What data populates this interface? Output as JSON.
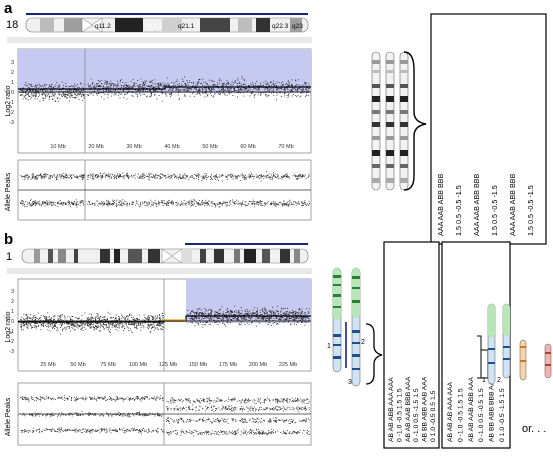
{
  "panel_a": {
    "label": "a",
    "chromosome_number": "18",
    "bands": [
      "q11.2",
      "q12.2",
      "q21.1",
      "q22.3",
      "q23"
    ],
    "plot_ylabel": "Log2 ratio",
    "y_ticks": [
      "3",
      "2",
      "1",
      "0",
      "-1",
      "-2",
      "-3"
    ],
    "x_ticks": [
      "10 Mb",
      "20 Mb",
      "30 Mb",
      "40 Mb",
      "50 Mb",
      "60 Mb",
      "70 Mb"
    ],
    "allele_label": "Allele Peaks",
    "genotype_box_rows": [
      "AAA AAB ABB BBB",
      "1.5  0.5 -0.5 -1.5",
      "AAA AAB ABB BBB",
      "1.5  0.5 -0.5 -1.5",
      "AAA AAB ABB BBB",
      "1.5  0.5 -0.5 -1.5"
    ]
  },
  "panel_b": {
    "label": "b",
    "chromosome_number": "1",
    "plot_ylabel": "Log2 ratio",
    "y_ticks": [
      "3",
      "2",
      "1",
      "0",
      "-1",
      "-2",
      "-3"
    ],
    "x_ticks": [
      "25 Mb",
      "50 Mb",
      "75 Mb",
      "100 Mb",
      "125 Mb",
      "150 Mb",
      "175 Mb",
      "200 Mb",
      "225 Mb"
    ],
    "allele_label": "Allele Peaks",
    "box1_rows": [
      "AB  AB  ABB AAA AAA",
      "0  -1.0 -0.5 1.5  1.5",
      "AB  AB  AAB BBB AAA",
      "0  -1.0  0.5 -1.5 1.5",
      "AB  BB  ABB AAB AAA",
      "0   1.0 -0.5  0.5 1.5"
    ],
    "box2_rows": [
      "AB  AB  AB  AAA AAA",
      "0  -1.0 -0.5  1.5 1.5",
      "AB  AB  AAB ABB AAA",
      "0  -1.0  0.5 -0.5 1.5",
      "AB  BB  ABB BBB AAA",
      "0   1.0 -0.5 -1.5 1.5"
    ],
    "region_labels": [
      "1",
      "2",
      "3"
    ],
    "right_region_labels": [
      "1",
      "2"
    ],
    "or_text": "or",
    "or_more_text": "or. . ."
  }
}
